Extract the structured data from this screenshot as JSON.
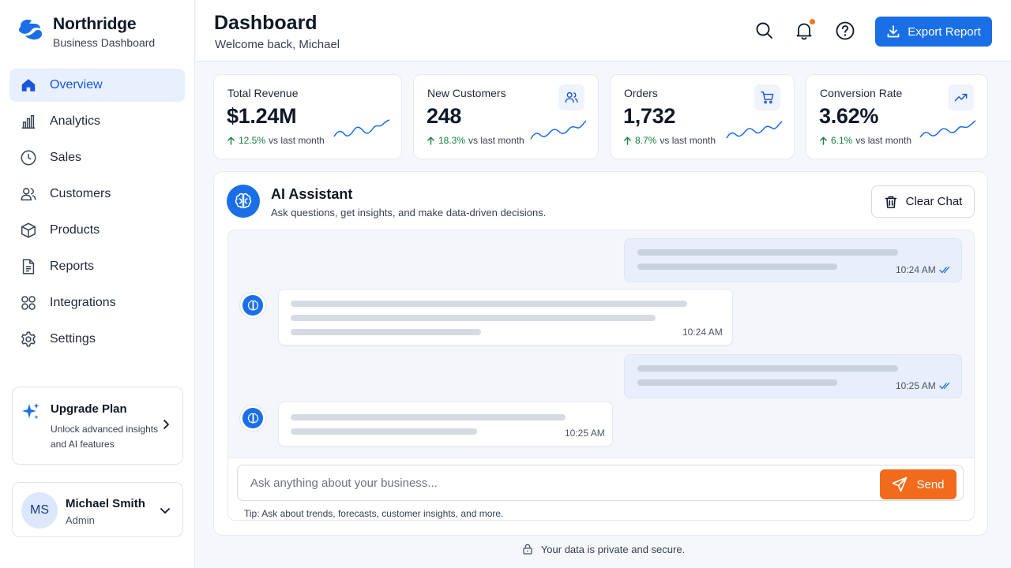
{
  "brand": {
    "name": "Northridge",
    "subtitle": "Business Dashboard",
    "logo_icon": "northridge-logo"
  },
  "sidebar": {
    "items": [
      {
        "label": "Overview",
        "icon": "home-icon",
        "active": true
      },
      {
        "label": "Analytics",
        "icon": "bar-chart-icon"
      },
      {
        "label": "Sales",
        "icon": "clock-icon"
      },
      {
        "label": "Customers",
        "icon": "users-icon"
      },
      {
        "label": "Products",
        "icon": "box-icon"
      },
      {
        "label": "Reports",
        "icon": "document-icon"
      },
      {
        "label": "Integrations",
        "icon": "grid-circles-icon"
      },
      {
        "label": "Settings",
        "icon": "gear-icon"
      }
    ],
    "upgrade": {
      "title": "Upgrade Plan",
      "description": "Unlock advanced insights and AI features",
      "icon": "sparkles-icon"
    },
    "user": {
      "initials": "MS",
      "name": "Michael Smith",
      "role": "Admin"
    }
  },
  "header": {
    "title": "Dashboard",
    "subtitle": "Welcome back, Michael",
    "icons": [
      "search-icon",
      "bell-icon",
      "help-icon"
    ],
    "export_label": "Export Report"
  },
  "kpis": [
    {
      "label": "Total Revenue",
      "value": "$1.24M",
      "change": "12.5%",
      "change_suffix": "vs last month"
    },
    {
      "label": "New Customers",
      "value": "248",
      "change": "18.3%",
      "change_suffix": "vs last month",
      "icon": "users-icon"
    },
    {
      "label": "Orders",
      "value": "1,732",
      "change": "8.7%",
      "change_suffix": "vs last month",
      "icon": "cart-icon"
    },
    {
      "label": "Conversion Rate",
      "value": "3.62%",
      "change": "6.1%",
      "change_suffix": "vs last month",
      "icon": "trending-up-icon"
    }
  ],
  "assistant": {
    "title": "AI Assistant",
    "subtitle": "Ask questions, get insights, and make data-driven decisions.",
    "clear_label": "Clear Chat",
    "messages": [
      {
        "from": "user",
        "time": "10:24 AM"
      },
      {
        "from": "bot",
        "time": "10:24 AM"
      },
      {
        "from": "user",
        "time": "10:25 AM"
      },
      {
        "from": "bot",
        "time": "10:25 AM"
      }
    ],
    "input_placeholder": "Ask anything about your business...",
    "send_label": "Send",
    "tip": "Tip: Ask about trends, forecasts, customer insights, and more."
  },
  "footer": {
    "note": "Your data is private and secure."
  },
  "colors": {
    "accent": "#1a6fe6",
    "send": "#f26b1d",
    "positive": "#15803d",
    "notification": "#f97316"
  }
}
